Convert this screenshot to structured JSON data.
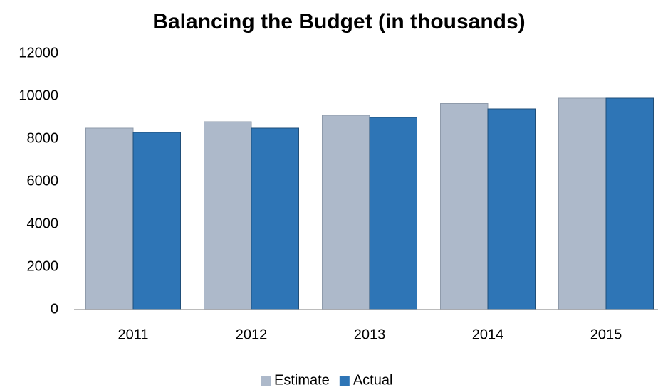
{
  "chart_data": {
    "type": "bar",
    "title": "Balancing the Budget (in thousands)",
    "categories": [
      "2011",
      "2012",
      "2013",
      "2014",
      "2015"
    ],
    "series": [
      {
        "name": "Estimate",
        "color": "#adb9ca",
        "values": [
          8500,
          8800,
          9100,
          9650,
          9900
        ]
      },
      {
        "name": "Actual",
        "color": "#2e75b6",
        "values": [
          8300,
          8500,
          9000,
          9400,
          9900
        ]
      }
    ],
    "ylim": [
      0,
      12000
    ],
    "yticks": [
      0,
      2000,
      4000,
      6000,
      8000,
      10000,
      12000
    ],
    "grid": false,
    "legend": "bottom"
  }
}
